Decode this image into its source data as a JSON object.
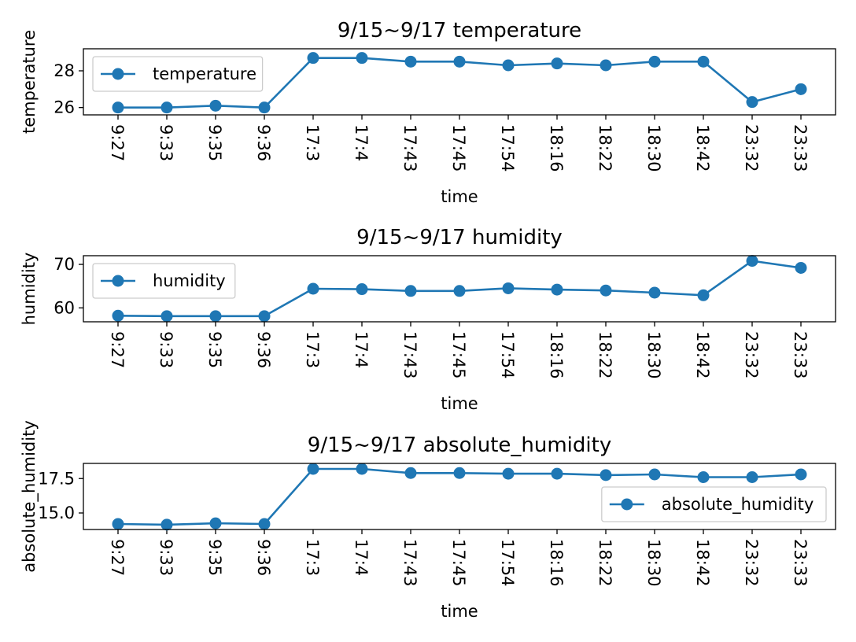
{
  "colors": {
    "series": "#1f77b4",
    "axes": "#000000",
    "background": "#ffffff",
    "legend_border": "#cccccc"
  },
  "chart_data": [
    {
      "type": "line",
      "title": "9/15~9/17 temperature",
      "xlabel": "time",
      "ylabel": "temperature",
      "categories": [
        "9:27",
        "9:33",
        "9:35",
        "9:36",
        "17:3",
        "17:4",
        "17:43",
        "17:45",
        "17:54",
        "18:16",
        "18:22",
        "18:30",
        "18:42",
        "23:32",
        "23:33"
      ],
      "series": [
        {
          "name": "temperature",
          "values": [
            26.0,
            26.0,
            26.1,
            26.0,
            28.7,
            28.7,
            28.5,
            28.5,
            28.3,
            28.4,
            28.3,
            28.5,
            28.5,
            26.3,
            27.0
          ]
        }
      ],
      "ylim": [
        25.6,
        29.2
      ],
      "yticks": [
        26,
        28
      ],
      "ytick_labels": [
        "26",
        "28"
      ],
      "grid": false,
      "legend": "upper-left"
    },
    {
      "type": "line",
      "title": "9/15~9/17 humidity",
      "xlabel": "time",
      "ylabel": "humidity",
      "categories": [
        "9:27",
        "9:33",
        "9:35",
        "9:36",
        "17:3",
        "17:4",
        "17:43",
        "17:45",
        "17:54",
        "18:16",
        "18:22",
        "18:30",
        "18:42",
        "23:32",
        "23:33"
      ],
      "series": [
        {
          "name": "humidity",
          "values": [
            58.2,
            58.1,
            58.1,
            58.1,
            64.4,
            64.3,
            63.9,
            63.9,
            64.5,
            64.2,
            64.0,
            63.5,
            62.9,
            70.8,
            69.2
          ]
        }
      ],
      "ylim": [
        56.8,
        72.0
      ],
      "yticks": [
        60,
        70
      ],
      "ytick_labels": [
        "60",
        "70"
      ],
      "grid": false,
      "legend": "upper-left"
    },
    {
      "type": "line",
      "title": "9/15~9/17 absolute_humidity",
      "xlabel": "time",
      "ylabel": "absolute_humidity",
      "categories": [
        "9:27",
        "9:33",
        "9:35",
        "9:36",
        "17:3",
        "17:4",
        "17:43",
        "17:45",
        "17:54",
        "18:16",
        "18:22",
        "18:30",
        "18:42",
        "23:32",
        "23:33"
      ],
      "series": [
        {
          "name": "absolute_humidity",
          "values": [
            14.2,
            14.15,
            14.25,
            14.2,
            18.2,
            18.2,
            17.9,
            17.9,
            17.85,
            17.85,
            17.75,
            17.8,
            17.6,
            17.6,
            17.8
          ]
        }
      ],
      "ylim": [
        13.8,
        18.6
      ],
      "yticks": [
        15.0,
        17.5
      ],
      "ytick_labels": [
        "15.0",
        "17.5"
      ],
      "grid": false,
      "legend": "lower-right"
    }
  ]
}
